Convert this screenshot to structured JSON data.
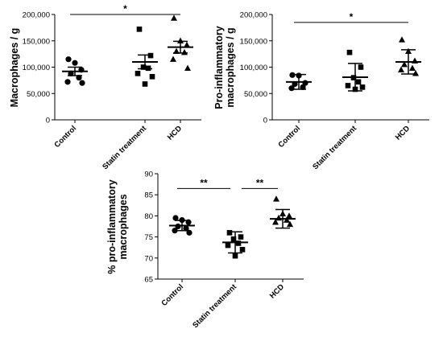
{
  "chart_data": [
    {
      "type": "scatter",
      "ylabel": [
        "Macrophages / g"
      ],
      "categories": [
        "Control",
        "Statin treatment",
        "HCD"
      ],
      "ylim": [
        0,
        200000
      ],
      "yticks": [
        0,
        50000,
        100000,
        150000,
        200000
      ],
      "ytick_labels": [
        "0",
        "50,000",
        "100,000",
        "150,000",
        "200,000"
      ],
      "series": [
        {
          "category": "Control",
          "marker": "circle",
          "values": [
            115000,
            108000,
            95000,
            88000,
            80000,
            72000,
            70000
          ],
          "mean": 92000,
          "error": 8000
        },
        {
          "category": "Statin treatment",
          "marker": "square",
          "values": [
            172000,
            122000,
            100000,
            98000,
            88000,
            82000,
            68000
          ],
          "mean": 110000,
          "error": 13000
        },
        {
          "category": "HCD",
          "marker": "triangle",
          "values": [
            193000,
            150000,
            142000,
            130000,
            128000,
            115000,
            98000
          ],
          "mean": 138000,
          "error": 11000
        }
      ],
      "annotations": [
        {
          "text": "*",
          "from": "Control",
          "to": "HCD",
          "y": 200000
        }
      ]
    },
    {
      "type": "scatter",
      "ylabel": [
        "Pro-inflammatory",
        "macrophages / g"
      ],
      "categories": [
        "Control",
        "Statin treatment",
        "HCD"
      ],
      "ylim": [
        0,
        200000
      ],
      "yticks": [
        0,
        50000,
        100000,
        150000,
        200000
      ],
      "ytick_labels": [
        "0",
        "50,000",
        "100,000",
        "150,000",
        "200,000"
      ],
      "series": [
        {
          "category": "Control",
          "marker": "circle",
          "values": [
            85000,
            84000,
            70000,
            68000,
            62000,
            60000
          ],
          "mean": 72000,
          "error": 14000
        },
        {
          "category": "Statin treatment",
          "marker": "square",
          "values": [
            128000,
            100000,
            80000,
            72000,
            65000,
            62000,
            58000
          ],
          "mean": 81000,
          "error": 26000
        },
        {
          "category": "HCD",
          "marker": "triangle",
          "values": [
            152000,
            130000,
            112000,
            105000,
            98000,
            95000,
            88000
          ],
          "mean": 110000,
          "error": 23000
        }
      ],
      "annotations": [
        {
          "text": "*",
          "from": "Control",
          "to": "HCD",
          "y": 185000
        }
      ]
    },
    {
      "type": "scatter",
      "ylabel": [
        "% pro-inflammatory",
        "macrophages"
      ],
      "categories": [
        "Control",
        "Statin treatment",
        "HCD"
      ],
      "ylim": [
        65,
        90
      ],
      "yticks": [
        65,
        70,
        75,
        80,
        85,
        90
      ],
      "ytick_labels": [
        "65",
        "70",
        "75",
        "80",
        "85",
        "90"
      ],
      "series": [
        {
          "category": "Control",
          "marker": "circle",
          "values": [
            79.5,
            79.0,
            78.5,
            77.5,
            77.0,
            76.5,
            76.0
          ],
          "mean": 77.7,
          "error": 1.2
        },
        {
          "category": "Statin treatment",
          "marker": "square",
          "values": [
            76.0,
            75.0,
            74.5,
            73.5,
            73.0,
            72.0,
            70.5
          ],
          "mean": 73.7,
          "error": 2.5
        },
        {
          "category": "HCD",
          "marker": "triangle",
          "values": [
            84.0,
            80.5,
            80.0,
            79.5,
            79.0,
            78.5,
            78.0
          ],
          "mean": 79.3,
          "error": 2.2
        }
      ],
      "annotations": [
        {
          "text": "**",
          "from": "Control",
          "to": "Statin treatment",
          "y": 86.5
        },
        {
          "text": "**",
          "from": "Statin treatment",
          "to": "HCD",
          "y": 86.5
        }
      ]
    }
  ]
}
